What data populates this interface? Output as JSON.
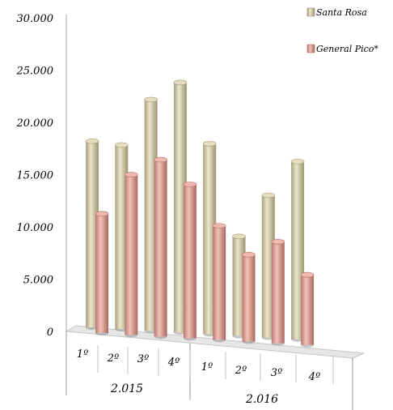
{
  "chart_data": {
    "type": "bar",
    "title": "",
    "xlabel": "",
    "ylabel": "",
    "ylim": [
      0,
      30000
    ],
    "y_ticks": [
      "0",
      "5.000",
      "10.000",
      "15.000",
      "20.000",
      "25.000",
      "30.000"
    ],
    "y_tick_values": [
      0,
      5000,
      10000,
      15000,
      20000,
      25000,
      30000
    ],
    "categories": [
      "1º",
      "2º",
      "3º",
      "4º",
      "1º",
      "2º",
      "3º",
      "4º"
    ],
    "groups": [
      {
        "label": "2.015",
        "span": [
          0,
          3
        ]
      },
      {
        "label": "2.016",
        "span": [
          4,
          7
        ]
      }
    ],
    "series": [
      {
        "name": "Santa Rosa",
        "color": "#c8bf98",
        "values": [
          18200,
          18000,
          22500,
          24300,
          18600,
          9900,
          14000,
          17400
        ]
      },
      {
        "name": "General  Pico*",
        "color": "#d9968c",
        "values": [
          11800,
          15700,
          17300,
          15100,
          11300,
          8700,
          10100,
          7100
        ]
      }
    ],
    "legend_position": "top-right",
    "grid": false,
    "style": "3d-cylinder"
  }
}
